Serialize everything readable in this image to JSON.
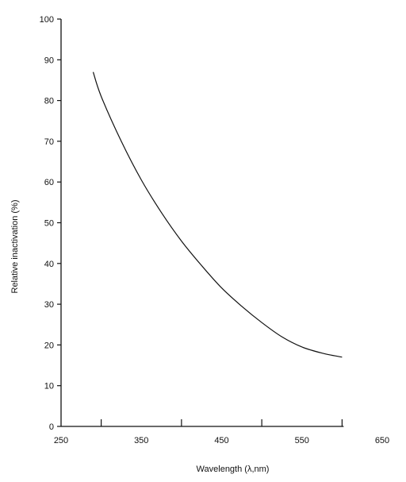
{
  "chart_data": {
    "type": "line",
    "title": "",
    "xlabel": "Wavelength  (λ,nm)",
    "ylabel": "Relative inactivation (%)",
    "xlim": [
      250,
      650
    ],
    "ylim": [
      0,
      100
    ],
    "x_tick_labels": [
      "250",
      "350",
      "450",
      "550",
      "650"
    ],
    "x_tick_values": [
      250,
      350,
      450,
      550,
      650
    ],
    "x_minor_ticks": [
      300,
      400,
      500,
      600
    ],
    "y_ticks": [
      0,
      10,
      20,
      30,
      40,
      50,
      60,
      70,
      80,
      90,
      100
    ],
    "grid": false,
    "legend": "none",
    "series": [
      {
        "x": [
          290,
          300,
          325,
          350,
          375,
          400,
          425,
          450,
          475,
          500,
          525,
          550,
          575,
          600
        ],
        "y": [
          87,
          81,
          70,
          60.5,
          52.5,
          45.5,
          39.5,
          34,
          29.5,
          25.5,
          22,
          19.5,
          18,
          17
        ],
        "color": "#111111"
      }
    ]
  }
}
